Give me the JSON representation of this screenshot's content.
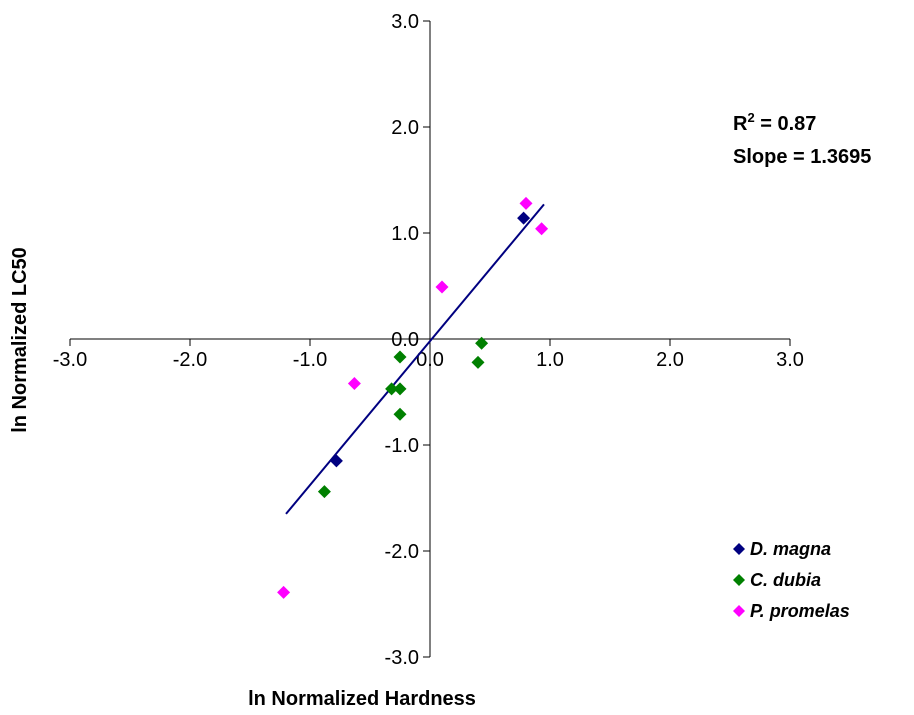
{
  "chart_data": {
    "type": "scatter",
    "title": "",
    "xlabel": "ln Normalized Hardness",
    "ylabel": "ln Normalized LC50",
    "xlim": [
      -3.0,
      3.0
    ],
    "ylim": [
      -3.0,
      3.0
    ],
    "x_ticks": [
      "-3.0",
      "-2.0",
      "-1.0",
      "0.0",
      "1.0",
      "2.0",
      "3.0"
    ],
    "y_ticks": [
      "3.0",
      "2.0",
      "1.0",
      "0.0",
      "-1.0",
      "-2.0",
      "-3.0"
    ],
    "grid": false,
    "legend_position": "bottom-right",
    "series": [
      {
        "name": "D. magna",
        "color": "#000080",
        "points": [
          [
            -0.78,
            -1.15
          ],
          [
            0.78,
            1.14
          ]
        ]
      },
      {
        "name": "C. dubia",
        "color": "#008000",
        "points": [
          [
            -0.88,
            -1.44
          ],
          [
            -0.32,
            -0.47
          ],
          [
            -0.25,
            -0.47
          ],
          [
            -0.25,
            -0.17
          ],
          [
            -0.25,
            -0.71
          ],
          [
            0.4,
            -0.22
          ],
          [
            0.43,
            -0.04
          ]
        ]
      },
      {
        "name": "P. promelas",
        "color": "#ff00ff",
        "points": [
          [
            -1.22,
            -2.39
          ],
          [
            -0.63,
            -0.42
          ],
          [
            0.1,
            0.49
          ],
          [
            0.8,
            1.28
          ],
          [
            0.93,
            1.04
          ]
        ]
      }
    ],
    "trendline": {
      "color": "#000080",
      "x": [
        -1.2,
        0.95
      ],
      "y": [
        -1.65,
        1.27
      ]
    },
    "annotations": {
      "r_squared_prefix": "R",
      "r_squared_sup": "2",
      "r_squared_value": " = 0.87",
      "slope": "Slope = 1.3695"
    }
  }
}
